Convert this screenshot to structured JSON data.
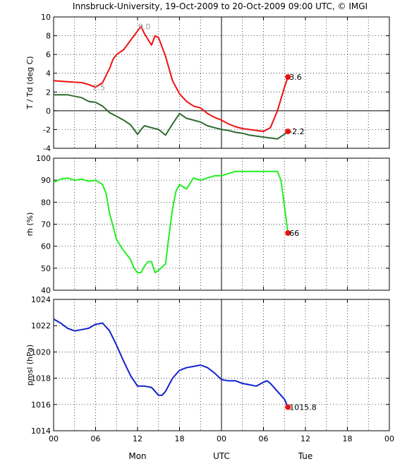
{
  "title": "Innsbruck-University, 19-Oct-2009 to 20-Oct-2009 09:00 UTC, © IMGI",
  "colors": {
    "temp": "#ee1111",
    "dew": "#2e6b2e",
    "rh": "#22ee22",
    "pmsl": "#1122cc",
    "marker": "#ee1111"
  },
  "chart_data": [
    {
      "type": "line",
      "ylabel": "T / Td (deg C)",
      "ylim": [
        -4,
        10
      ],
      "yticks": [
        -4,
        -2,
        0,
        2,
        4,
        6,
        8,
        10
      ],
      "xlim": [
        0,
        48
      ],
      "series": [
        {
          "key": "temp",
          "x": [
            0,
            2,
            4,
            5,
            6,
            7,
            8,
            8.5,
            9,
            10,
            11,
            12,
            12.5,
            13,
            14,
            14.5,
            15,
            16,
            17,
            18,
            19,
            20,
            21,
            22,
            23,
            24,
            25,
            26,
            27,
            28,
            29,
            30,
            31,
            32,
            33,
            33.5
          ],
          "values": [
            3.2,
            3.1,
            3.0,
            2.8,
            2.5,
            3.0,
            4.5,
            5.5,
            6.0,
            6.5,
            7.5,
            8.5,
            9.0,
            8.2,
            7.0,
            8.0,
            7.8,
            5.8,
            3.2,
            1.8,
            1.0,
            0.5,
            0.3,
            -0.3,
            -0.7,
            -1.0,
            -1.4,
            -1.7,
            -1.9,
            -2.0,
            -2.1,
            -2.2,
            -1.8,
            0,
            2.5,
            3.6
          ]
        },
        {
          "key": "dew",
          "x": [
            0,
            2,
            4,
            5,
            6,
            7,
            8,
            9,
            10,
            11,
            12,
            12.5,
            13,
            14,
            15,
            16,
            17,
            18,
            19,
            20,
            21,
            22,
            23,
            24,
            25,
            26,
            27,
            28,
            29,
            30,
            31,
            32,
            33,
            33.5
          ],
          "values": [
            1.7,
            1.7,
            1.4,
            1.0,
            0.9,
            0.5,
            -0.2,
            -0.6,
            -1.0,
            -1.5,
            -2.5,
            -2.0,
            -1.6,
            -1.8,
            -2.0,
            -2.6,
            -1.4,
            -0.3,
            -0.8,
            -1.0,
            -1.2,
            -1.6,
            -1.8,
            -2.0,
            -2.1,
            -2.3,
            -2.4,
            -2.6,
            -2.7,
            -2.8,
            -2.9,
            -3.0,
            -2.5,
            -2.2
          ]
        }
      ],
      "annotations": [
        {
          "text": "9.0",
          "x": 12.5,
          "y": 9.0,
          "color": "#999999"
        },
        {
          "text": "2.5",
          "x": 6,
          "y": 2.5,
          "color": "#999999"
        },
        {
          "text": "3.6",
          "x": 33.5,
          "y": 3.6,
          "color": "#000000",
          "marker": true
        },
        {
          "text": "-2.2",
          "x": 33.5,
          "y": -2.2,
          "color": "#000000",
          "marker": true
        }
      ]
    },
    {
      "type": "line",
      "ylabel": "rh (%)",
      "ylim": [
        40,
        100
      ],
      "yticks": [
        40,
        50,
        60,
        70,
        80,
        90,
        100
      ],
      "xlim": [
        0,
        48
      ],
      "series": [
        {
          "key": "rh",
          "x": [
            0,
            1,
            2,
            3,
            4,
            5,
            6,
            7,
            7.5,
            8,
            9,
            10,
            11,
            11.5,
            12,
            12.5,
            13,
            13.5,
            14,
            14.5,
            15,
            16,
            16.5,
            17,
            17.5,
            18,
            19,
            20,
            21,
            22,
            23,
            24,
            25,
            26,
            27,
            28,
            29,
            30,
            31,
            32,
            32.5,
            33,
            33.5
          ],
          "values": [
            89,
            90.5,
            91,
            90,
            90.5,
            89.5,
            90,
            88,
            84,
            75,
            63,
            58,
            54,
            50,
            48,
            48,
            51,
            53,
            53,
            48,
            49,
            52,
            65,
            77,
            85,
            88,
            86,
            91,
            90,
            91,
            92,
            92,
            93,
            94,
            94,
            94,
            94,
            94,
            94,
            94,
            90,
            78,
            66
          ]
        }
      ],
      "annotations": [
        {
          "text": "66",
          "x": 33.5,
          "y": 66,
          "color": "#000000",
          "marker": true
        }
      ]
    },
    {
      "type": "line",
      "ylabel": "pmsl (hPa)",
      "ylim": [
        1014,
        1024
      ],
      "yticks": [
        1014,
        1016,
        1018,
        1020,
        1022,
        1024
      ],
      "xlim": [
        0,
        48
      ],
      "xticklabels": [
        "00",
        "06",
        "12",
        "18",
        "00",
        "06",
        "12",
        "18",
        "00"
      ],
      "xticks": [
        0,
        6,
        12,
        18,
        24,
        30,
        36,
        42,
        48
      ],
      "daylabels": [
        {
          "text": "Mon",
          "x": 12
        },
        {
          "text": "UTC",
          "x": 24
        },
        {
          "text": "Tue",
          "x": 36
        }
      ],
      "series": [
        {
          "key": "pmsl",
          "x": [
            0,
            1,
            2,
            3,
            4,
            5,
            6,
            7,
            8,
            9,
            10,
            11,
            12,
            13,
            14,
            15,
            15.5,
            16,
            17,
            18,
            19,
            20,
            21,
            22,
            23,
            24,
            25,
            26,
            27,
            28,
            29,
            30,
            30.5,
            31,
            32,
            33,
            33.5
          ],
          "values": [
            1022.5,
            1022.2,
            1021.8,
            1021.6,
            1021.7,
            1021.8,
            1022.1,
            1022.2,
            1021.6,
            1020.5,
            1019.3,
            1018.2,
            1017.4,
            1017.4,
            1017.3,
            1016.7,
            1016.7,
            1017.0,
            1018.0,
            1018.6,
            1018.8,
            1018.9,
            1019.0,
            1018.8,
            1018.4,
            1017.9,
            1017.8,
            1017.8,
            1017.6,
            1017.5,
            1017.4,
            1017.7,
            1017.8,
            1017.6,
            1017.0,
            1016.4,
            1015.8
          ]
        }
      ],
      "annotations": [
        {
          "text": "1015.8",
          "x": 33.5,
          "y": 1015.8,
          "color": "#000000",
          "marker": true
        }
      ]
    }
  ]
}
